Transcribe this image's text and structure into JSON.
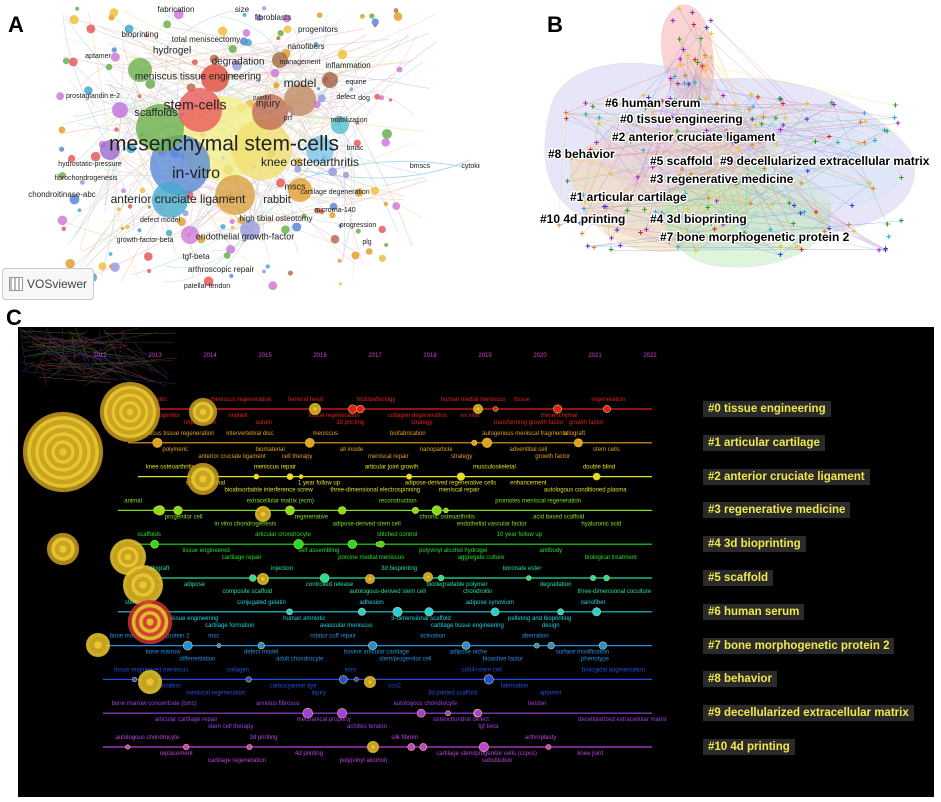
{
  "panels": {
    "a": "A",
    "b": "B",
    "c": "C"
  },
  "vosviewer": {
    "logo_label": "VOSviewer"
  },
  "network_terms": [
    {
      "t": "fabrication",
      "c": "#222",
      "s": 8
    },
    {
      "t": "size",
      "c": "#222",
      "s": 8
    },
    {
      "t": "fibroblasts",
      "c": "#222",
      "s": 8
    },
    {
      "t": "progenitors",
      "c": "#222",
      "s": 8
    },
    {
      "t": "bioprinting",
      "c": "#222",
      "s": 8
    },
    {
      "t": "total meniscectomy",
      "c": "#222",
      "s": 8
    },
    {
      "t": "hydrogel",
      "c": "#222",
      "s": 10
    },
    {
      "t": "nanofibers",
      "c": "#222",
      "s": 8
    },
    {
      "t": "aptamer",
      "c": "#222",
      "s": 7
    },
    {
      "t": "management",
      "c": "#222",
      "s": 7
    },
    {
      "t": "degradation",
      "c": "#222",
      "s": 10
    },
    {
      "t": "inflammation",
      "c": "#222",
      "s": 8
    },
    {
      "t": "meniscus tissue engineering",
      "c": "#222",
      "s": 10
    },
    {
      "t": "model",
      "c": "#222",
      "s": 12
    },
    {
      "t": "equine",
      "c": "#222",
      "s": 7
    },
    {
      "t": "prostaglandin e-2",
      "c": "#222",
      "s": 7
    },
    {
      "t": "painful",
      "c": "#222",
      "s": 6
    },
    {
      "t": "dog",
      "c": "#222",
      "s": 7
    },
    {
      "t": "stem-cells",
      "c": "#222",
      "s": 14
    },
    {
      "t": "injury",
      "c": "#222",
      "s": 10
    },
    {
      "t": "defect",
      "c": "#222",
      "s": 7
    },
    {
      "t": "scaffolds",
      "c": "#222",
      "s": 11
    },
    {
      "t": "prf",
      "c": "#222",
      "s": 7
    },
    {
      "t": "mobilization",
      "c": "#222",
      "s": 7
    },
    {
      "t": "mesenchymal stem-cells",
      "c": "#222",
      "s": 21
    },
    {
      "t": "bmac",
      "c": "#222",
      "s": 7
    },
    {
      "t": "knee osteoarthritis",
      "c": "#222",
      "s": 12
    },
    {
      "t": "in-vitro",
      "c": "#222",
      "s": 16
    },
    {
      "t": "bmscs",
      "c": "#222",
      "s": 7
    },
    {
      "t": "cytokines",
      "c": "#222",
      "s": 7
    },
    {
      "t": "hydrostatic-pressure",
      "c": "#222",
      "s": 7
    },
    {
      "t": "fibrochondrogenesis",
      "c": "#222",
      "s": 7
    },
    {
      "t": "rabbit",
      "c": "#222",
      "s": 11
    },
    {
      "t": "mscs",
      "c": "#222",
      "s": 9
    },
    {
      "t": "cartilage degeneration",
      "c": "#222",
      "s": 7
    },
    {
      "t": "chondroitinase-abc",
      "c": "#222",
      "s": 8
    },
    {
      "t": "anterior cruciate ligament",
      "c": "#222",
      "s": 12
    },
    {
      "t": "microrna-140",
      "c": "#222",
      "s": 7
    },
    {
      "t": "defect model",
      "c": "#222",
      "s": 7
    },
    {
      "t": "high tibial osteotomy",
      "c": "#222",
      "s": 8
    },
    {
      "t": "progression",
      "c": "#222",
      "s": 7
    },
    {
      "t": "growth-factor-beta",
      "c": "#222",
      "s": 7
    },
    {
      "t": "endothelial growth-factor",
      "c": "#222",
      "s": 9
    },
    {
      "t": "tgf-beta",
      "c": "#222",
      "s": 8
    },
    {
      "t": "plg",
      "c": "#222",
      "s": 7
    },
    {
      "t": "arthroscopic repair",
      "c": "#222",
      "s": 8
    },
    {
      "t": "patellar tendon",
      "c": "#222",
      "s": 7
    }
  ],
  "clusters_b": [
    "#6 human serum",
    "#0 tissue engineering",
    "#2 anterior cruciate ligament",
    "#8 behavior",
    "#5 scaffold",
    "#9 decellularized extracellular matrix",
    "#3 regenerative medicine",
    "#1 articular cartilage",
    "#10 4d printing",
    "#4 3d bioprinting",
    "#7 bone morphogenetic protein 2"
  ],
  "timeline": {
    "years": [
      "2012",
      "2013",
      "2014",
      "2015",
      "2016",
      "2017",
      "2018",
      "2019",
      "2020",
      "2021",
      "2022"
    ],
    "clusters": [
      {
        "label": "#0 tissue engineering",
        "color": "#e02020",
        "terms": [
          "clinical results",
          "progenitor",
          "implantation",
          "meniscus regeneration",
          "implant",
          "autum",
          "femoral head",
          "tissue regeneration",
          "3d printing",
          "histopathology",
          "collagen degeneration",
          "strategy",
          "human medial meniscus",
          "ex vivo",
          "transforming growth factor",
          "tissue",
          "mesenchymal",
          "growth factor",
          "regeneration"
        ]
      },
      {
        "label": "#1 articular cartilage",
        "color": "#e0a020",
        "terms": [
          "meniscus tissue regeneration",
          "polymeric",
          "anterior cruciate ligament",
          "intervertebral disc",
          "biomaterial",
          "cell therapy",
          "meniscus",
          "all inside",
          "meniscal repair",
          "biofabrication",
          "nanoparticle",
          "strategy",
          "autogenous meniscal fragments",
          "adventitial cell",
          "growth factor",
          "allograft",
          "stem cells"
        ]
      },
      {
        "label": "#2 anterior cruciate ligament",
        "color": "#e0e020",
        "terms": [
          "knee osteoarthritis",
          "small intestinal",
          "bioabsorbable interference screw",
          "meniscus repair",
          "1 year follow up",
          "three-dimensional electrospinning",
          "articular joint growth",
          "adipose-derived regenerative cells",
          "meniscal repair",
          "musculoskeletal",
          "enhancement",
          "autologous conditioned plasma",
          "double blind"
        ]
      },
      {
        "label": "#3 regenerative medicine",
        "color": "#80e020",
        "terms": [
          "animal",
          "progenitor cell",
          "in vitro chondrogenesis",
          "extracellular matrix (ecm)",
          "regenerative",
          "adipose-derived stem cell",
          "reconstruction",
          "chronic osteoarthritis",
          "endothelial vascular factor",
          "promotes meniscal regeneration",
          "acid based scaffold",
          "hyaluronic acid"
        ]
      },
      {
        "label": "#4 3d bioprinting",
        "color": "#20e020",
        "terms": [
          "scaffolds",
          "tissue engineered",
          "cartilage repair",
          "articular chondrocyte",
          "self assembling",
          "porcine medial meniscus",
          "stitched control",
          "polyvinyl alcohol hydrogel",
          "aggregate culture",
          "10 year follow up",
          "antibody",
          "biological treatment"
        ]
      },
      {
        "label": "#5 scaffold",
        "color": "#20e0a0",
        "terms": [
          "allograft",
          "adipose",
          "composite scaffold",
          "injection",
          "controlled release",
          "autologous-derived stem cell",
          "3d bioprinting",
          "biodegradable polymer",
          "chondroitin",
          "boronate ester",
          "degradation",
          "three-dimensional coculture"
        ]
      },
      {
        "label": "#6 human serum",
        "color": "#20d0e0",
        "terms": [
          "stem cells",
          "tissue engineering",
          "cartilage formation",
          "conjugated gelatin",
          "human amniotic",
          "avascular meniscus",
          "adhesion",
          "3-dimensional scaffold",
          "cartilage tissue engineering",
          "adipose synovium",
          "pelleting and bioprinting",
          "design",
          "nanofiber"
        ]
      },
      {
        "label": "#7 bone morphogenetic protein 2",
        "color": "#2090e0",
        "terms": [
          "bone morphogenetic protein 2",
          "bone marrow",
          "differentiation",
          "msc",
          "defect model",
          "adult chondrocyte",
          "rotator cuff repair",
          "bovine articular cartilage",
          "stem/progenitor cell",
          "activation",
          "adipose niche",
          "bioactive factor",
          "aberration",
          "surface modification",
          "phenotype"
        ]
      },
      {
        "label": "#8 behavior",
        "color": "#2050e0",
        "terms": [
          "tissue engineered meniscus",
          "association",
          "meniscal regeneration",
          "collagen",
          "carbocyanine dye",
          "injury",
          "ecm",
          "ccn2",
          "3d printed scaffold",
          "cd34+stem cell",
          "fabrication",
          "aptamer",
          "biological augmentation"
        ]
      },
      {
        "label": "#9 decellularized extracellular matrix",
        "color": "#a040e0",
        "terms": [
          "bone marrow concentrate (bmc)",
          "articular cartilage repair",
          "stem cell therapy",
          "annulus fibrosus",
          "mechanical property",
          "achilles tendon",
          "autologous chondrocyte",
          "osteochondral defect",
          "tgf beta",
          "tendon",
          "decellularized extracellular matrix"
        ]
      },
      {
        "label": "#10 4d printing",
        "color": "#c040e0",
        "terms": [
          "autologous chondrocyte",
          "replacement",
          "cartilage regeneration",
          "3d printing",
          "4d printing",
          "poly(vinyl alcohol)",
          "silk fibroin",
          "cartilage stem/progenitor cells (cspcs)",
          "substitution",
          "arthroplasty",
          "knee joint"
        ]
      }
    ]
  }
}
